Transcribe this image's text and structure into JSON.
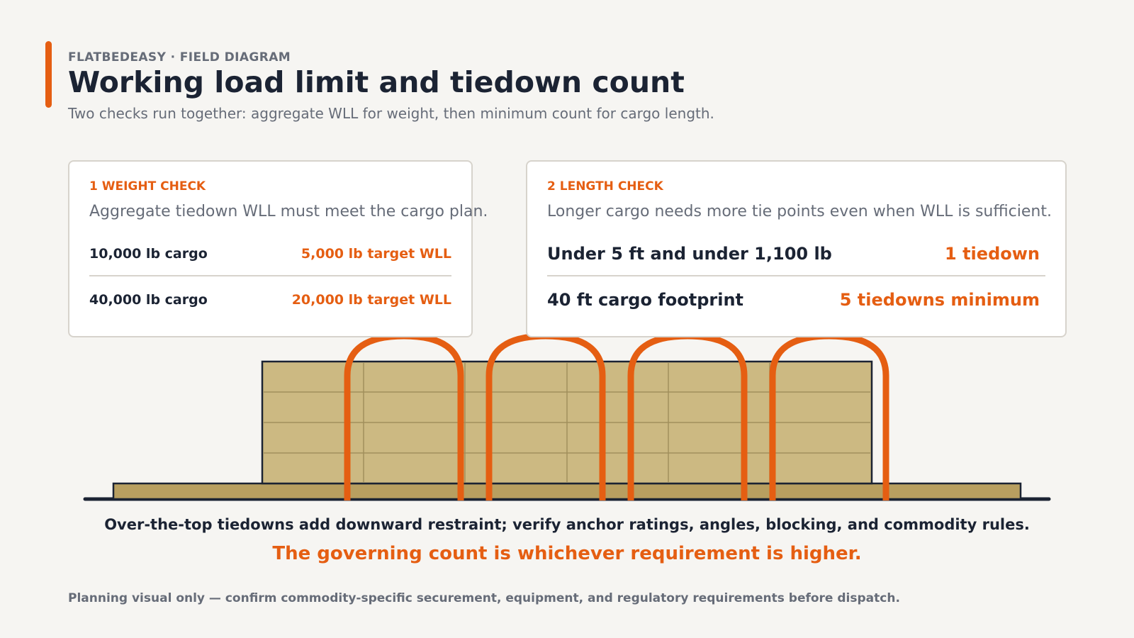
{
  "header": {
    "eyebrow": "FLATBEDEASY · FIELD DIAGRAM",
    "title": "Working load limit and tiedown count",
    "subtitle": "Two checks run together: aggregate WLL for weight, then minimum count for cargo length."
  },
  "weight_check": {
    "heading": "1 WEIGHT CHECK",
    "description": "Aggregate tiedown WLL must meet the cargo plan.",
    "rows": [
      {
        "cargo": "10,000 lb cargo",
        "target": "5,000 lb target WLL"
      },
      {
        "cargo": "40,000 lb cargo",
        "target": "20,000 lb target WLL"
      }
    ]
  },
  "length_check": {
    "heading": "2 LENGTH CHECK",
    "description": "Longer cargo needs more tie points even when WLL is sufficient.",
    "rows": [
      {
        "condition": "Under 5 ft and under 1,100 lb",
        "requirement": "1 tiedown"
      },
      {
        "condition": "40 ft cargo footprint",
        "requirement": "5 tiedowns minimum"
      }
    ]
  },
  "diagram": {
    "strap_count": 4,
    "colors": {
      "accent": "#e55e12",
      "cargo": "#ccb982",
      "deck": "#b89f60",
      "outline": "#1b2333"
    }
  },
  "captions": {
    "main": "Over-the-top tiedowns add downward restraint; verify anchor ratings, angles, blocking, and commodity rules.",
    "emphasis": "The governing count is whichever requirement is higher."
  },
  "footnote": "Planning visual only — confirm commodity-specific securement, equipment, and regulatory requirements before dispatch."
}
